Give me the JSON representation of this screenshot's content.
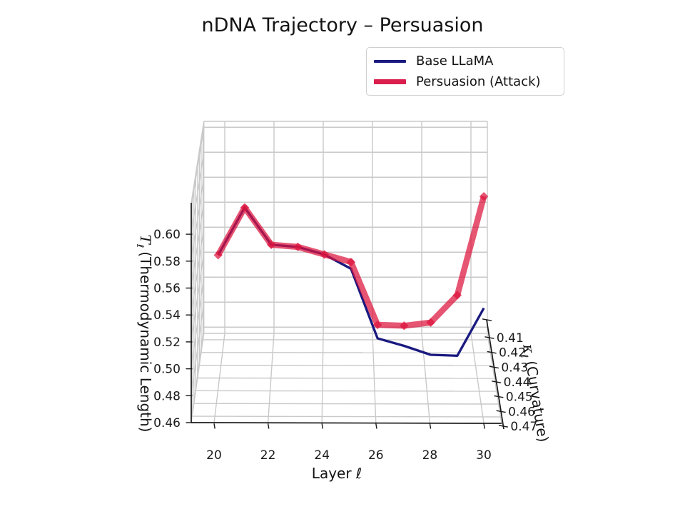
{
  "title": "nDNA Trajectory – Persuasion",
  "axes": {
    "x": {
      "label": "Layer ℓ",
      "ticks": [
        20,
        22,
        24,
        26,
        28,
        30
      ]
    },
    "y": {
      "symbol": "κ",
      "subscript": "ℓ",
      "name": "(Curvature)",
      "ticks": [
        0.41,
        0.42,
        0.43,
        0.44,
        0.45,
        0.46,
        0.47
      ]
    },
    "z": {
      "symbol": "T",
      "subscript": "ℓ",
      "name": "(Thermodynamic Length)",
      "ticks": [
        0.46,
        0.48,
        0.5,
        0.52,
        0.54,
        0.56,
        0.58,
        0.6
      ]
    }
  },
  "legend": {
    "items": [
      {
        "label": "Base LLaMA",
        "color": "#191980"
      },
      {
        "label": "Persuasion (Attack)",
        "color": "#da1e4d"
      }
    ]
  },
  "chart_data": {
    "type": "line",
    "projection": "3d",
    "title": "nDNA Trajectory – Persuasion",
    "xlabel": "Layer ℓ",
    "ylabel": "κℓ (Curvature)",
    "zlabel": "Tℓ (Thermodynamic Length)",
    "xlim": [
      19.2,
      30.7
    ],
    "ylim": [
      0.405,
      0.475
    ],
    "zlim": [
      0.455,
      0.622
    ],
    "grid": true,
    "legend_position": "upper right",
    "x_layers": [
      20,
      21,
      22,
      23,
      24,
      25,
      26,
      27,
      28,
      29,
      30
    ],
    "series": [
      {
        "name": "Base LLaMA",
        "color": "#191980",
        "alpha": 1.0,
        "linewidth": 3.3,
        "marker": "none",
        "thermodynamic_length": [
          0.58,
          0.61,
          0.577,
          0.57,
          0.559,
          0.543,
          0.486,
          0.475,
          0.463,
          0.457,
          0.487
        ],
        "curvature": [
          0.47,
          0.464,
          0.458,
          0.452,
          0.446,
          0.44,
          0.434,
          0.428,
          0.422,
          0.416,
          0.41
        ]
      },
      {
        "name": "Persuasion (Attack)",
        "color": "#dc143c",
        "alpha": 0.72,
        "linewidth": 8.5,
        "marker": "diamond",
        "thermodynamic_length": [
          0.58,
          0.61,
          0.577,
          0.57,
          0.559,
          0.548,
          0.496,
          0.49,
          0.487,
          0.502,
          0.57
        ],
        "curvature": [
          0.47,
          0.464,
          0.458,
          0.452,
          0.446,
          0.44,
          0.434,
          0.428,
          0.422,
          0.416,
          0.41
        ]
      }
    ]
  }
}
